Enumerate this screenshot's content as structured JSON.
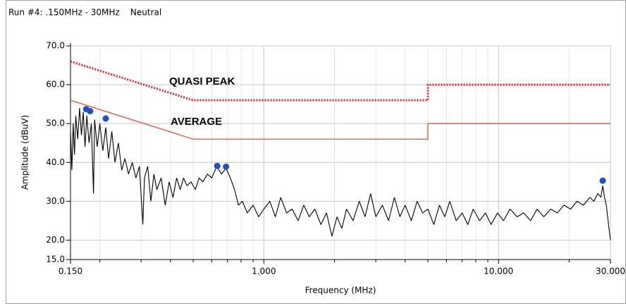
{
  "chart_data": {
    "type": "line",
    "title": "Run #4: .150MHz - 30MHz    Neutral",
    "xlabel": "Frequency (MHz)",
    "ylabel": "Amplitude (dBuV)",
    "annotations": [
      "QUASI PEAK",
      "AVERAGE"
    ],
    "xscale": "log",
    "grid": true,
    "xlim": [
      0.15,
      30
    ],
    "ylim": [
      15,
      70
    ],
    "xticks": [
      {
        "value": 0.15,
        "label": "0.150"
      },
      {
        "value": 1,
        "label": "1.000"
      },
      {
        "value": 10,
        "label": "10.000"
      },
      {
        "value": 30,
        "label": "30.000"
      }
    ],
    "xminorticks": [
      0.2,
      0.3,
      0.4,
      0.5,
      0.6,
      0.7,
      0.8,
      0.9,
      2,
      3,
      4,
      5,
      6,
      7,
      8,
      9,
      20
    ],
    "yticks": [
      {
        "value": 15,
        "label": "15.0"
      },
      {
        "value": 20,
        "label": "20.0"
      },
      {
        "value": 30,
        "label": "30.0"
      },
      {
        "value": 40,
        "label": "40.0"
      },
      {
        "value": 50,
        "label": "50.0"
      },
      {
        "value": 60,
        "label": "60.0"
      },
      {
        "value": 70,
        "label": "70.0"
      }
    ],
    "series": [
      {
        "kind": "dotted",
        "color": "#e8202a",
        "x": [
          0.15,
          0.5,
          5,
          5,
          30
        ],
        "values": [
          66,
          56,
          56,
          60,
          60
        ]
      },
      {
        "kind": "solid",
        "color": "#f04a2a",
        "x": [
          0.15,
          0.5,
          5,
          5,
          30
        ],
        "values": [
          56,
          46,
          46,
          50,
          50
        ]
      },
      {
        "kind": "trace",
        "color": "#000000",
        "x": [
          0.15,
          0.152,
          0.154,
          0.156,
          0.158,
          0.161,
          0.164,
          0.167,
          0.17,
          0.173,
          0.176,
          0.18,
          0.184,
          0.188,
          0.19,
          0.195,
          0.2,
          0.206,
          0.212,
          0.218,
          0.225,
          0.232,
          0.24,
          0.248,
          0.256,
          0.265,
          0.275,
          0.285,
          0.295,
          0.305,
          0.31,
          0.32,
          0.33,
          0.34,
          0.35,
          0.365,
          0.38,
          0.395,
          0.41,
          0.425,
          0.44,
          0.455,
          0.47,
          0.49,
          0.51,
          0.53,
          0.55,
          0.575,
          0.6,
          0.63,
          0.66,
          0.69,
          0.72,
          0.75,
          0.78,
          0.81,
          0.85,
          0.9,
          0.95,
          1.0,
          1.06,
          1.12,
          1.18,
          1.25,
          1.32,
          1.4,
          1.48,
          1.56,
          1.65,
          1.75,
          1.85,
          1.95,
          2.05,
          2.15,
          2.25,
          2.4,
          2.55,
          2.7,
          2.85,
          3.0,
          3.2,
          3.4,
          3.6,
          3.8,
          4.0,
          4.25,
          4.5,
          4.75,
          5.0,
          5.3,
          5.6,
          5.9,
          6.2,
          6.6,
          7.0,
          7.4,
          7.8,
          8.3,
          8.8,
          9.3,
          9.9,
          10.5,
          11.2,
          12.0,
          12.8,
          13.7,
          14.6,
          15.6,
          16.7,
          17.8,
          19.0,
          20.3,
          21.6,
          23.0,
          24.5,
          25.5,
          26.5,
          27.3,
          27.8,
          28.3,
          28.8,
          29.3,
          29.7,
          30.0
        ],
        "values": [
          48,
          38,
          50,
          42,
          52,
          46,
          54,
          47,
          53,
          44,
          52,
          45,
          50,
          32,
          51,
          44,
          50,
          43,
          49,
          41,
          48,
          40,
          45,
          38,
          41,
          37,
          40,
          36,
          39,
          24,
          36,
          39,
          30,
          37,
          33,
          36,
          29,
          35,
          31,
          36,
          33,
          36,
          34,
          35,
          33,
          36,
          35,
          37,
          36,
          39,
          37,
          38.5,
          36,
          33,
          29,
          30,
          27,
          29,
          26,
          28,
          30,
          26,
          31,
          27,
          28,
          25,
          29,
          26,
          28,
          24,
          27,
          21,
          26,
          23,
          28,
          25,
          30,
          26,
          32,
          26,
          29,
          25,
          31,
          26,
          29,
          25,
          30,
          27,
          28,
          24,
          29,
          26,
          30,
          25,
          27,
          24,
          28,
          25,
          27,
          24,
          27,
          25,
          28,
          26,
          27,
          25,
          28,
          26,
          28,
          27,
          29,
          28,
          30,
          29,
          31,
          30,
          32,
          31,
          34,
          31,
          29,
          25,
          22,
          20
        ]
      },
      {
        "kind": "peaks",
        "color": "#1f4fd0",
        "x": [
          0.175,
          0.182,
          0.212,
          0.633,
          0.69,
          27.8
        ],
        "values": [
          53.7,
          53.2,
          51.3,
          39.1,
          38.9,
          35.3
        ]
      }
    ]
  }
}
